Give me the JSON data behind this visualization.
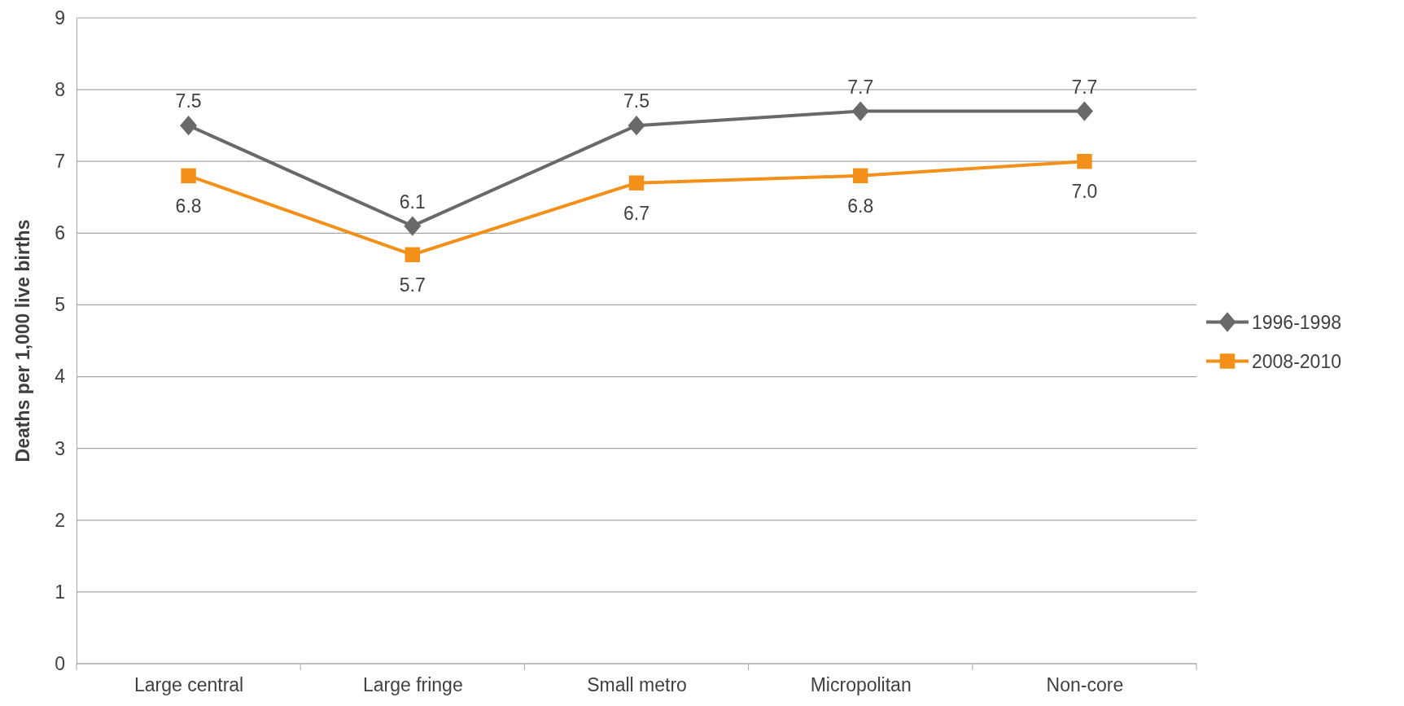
{
  "chart_data": {
    "type": "line",
    "ylabel": "Deaths per 1,000 live births",
    "categories": [
      "Large central",
      "Large fringe",
      "Small metro",
      "Micropolitan",
      "Non-core"
    ],
    "series": [
      {
        "name": "1996-1998",
        "color": "#696969",
        "marker": "diamond",
        "values": [
          7.5,
          6.1,
          7.5,
          7.7,
          7.7
        ],
        "value_labels": [
          "7.5",
          "6.1",
          "7.5",
          "7.7",
          "7.7"
        ]
      },
      {
        "name": "2008-2010",
        "color": "#f39019",
        "marker": "square",
        "values": [
          6.8,
          5.7,
          6.7,
          6.8,
          7.0
        ],
        "value_labels": [
          "6.8",
          "5.7",
          "6.7",
          "6.8",
          "7.0"
        ]
      }
    ],
    "ylim": [
      0,
      9
    ],
    "yticks": [
      0,
      1,
      2,
      3,
      4,
      5,
      6,
      7,
      8,
      9
    ],
    "grid": "y",
    "legend": "right"
  }
}
